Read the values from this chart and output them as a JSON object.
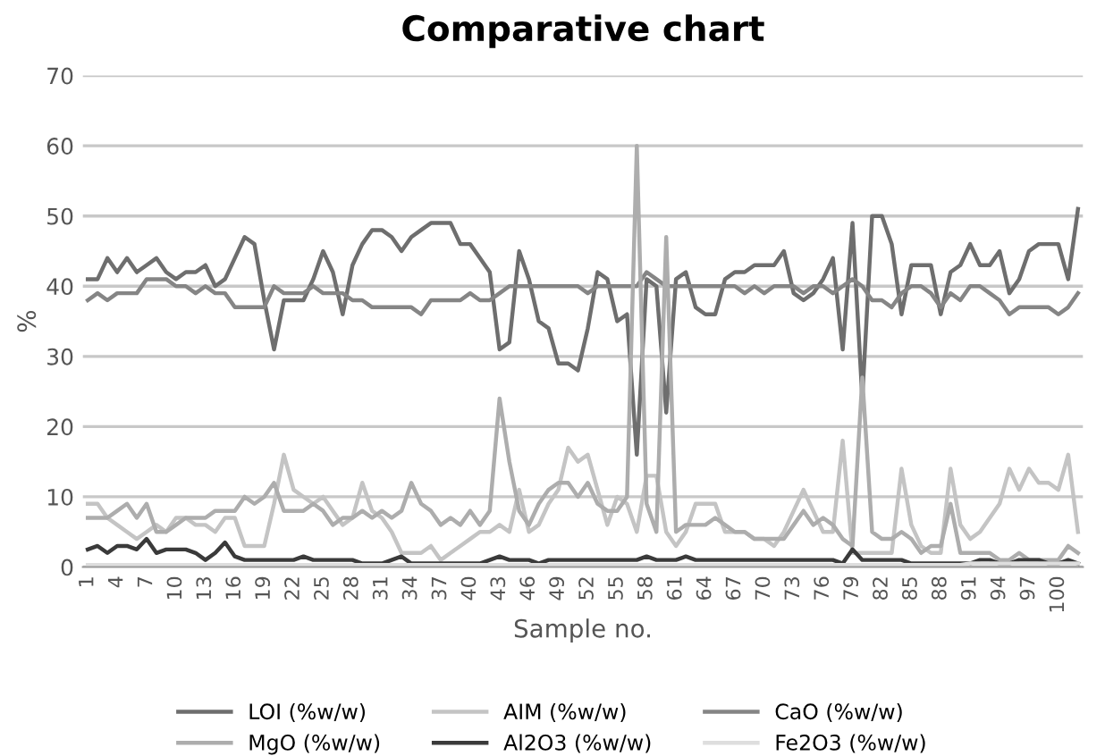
{
  "chart_data": {
    "type": "line",
    "title": "Comparative chart",
    "xlabel": "Sample no.",
    "ylabel": "%",
    "categories": [
      "1",
      null,
      null,
      "4",
      null,
      null,
      "7",
      null,
      null,
      "10",
      null,
      null,
      "13",
      null,
      null,
      "16",
      null,
      null,
      "19",
      null,
      null,
      "22",
      null,
      null,
      "25",
      null,
      null,
      "28",
      null,
      null,
      "31",
      null,
      null,
      "34",
      null,
      null,
      "37",
      null,
      null,
      "40",
      null,
      null,
      "43",
      null,
      null,
      "46",
      null,
      null,
      "49",
      null,
      null,
      "52",
      null,
      null,
      "55",
      null,
      null,
      "58",
      null,
      null,
      "61",
      null,
      null,
      "64",
      null,
      null,
      "67",
      null,
      null,
      "70",
      null,
      null,
      "73",
      null,
      null,
      "76",
      null,
      null,
      "79",
      null,
      null,
      "82",
      null,
      null,
      "85",
      null,
      null,
      "88",
      null,
      null,
      "91",
      null,
      null,
      "94",
      null,
      null,
      "97",
      null,
      null,
      "100",
      null,
      null
    ],
    "ylim": [
      0,
      70
    ],
    "yticks": [
      0,
      10,
      20,
      30,
      40,
      50,
      60,
      70
    ],
    "grid": "y",
    "legend": "bottom",
    "marker": "none",
    "line_style": "solid",
    "series": [
      {
        "name": "LOI (%w/w)",
        "color": "#6e6e6e",
        "values": [
          41,
          41,
          44,
          42,
          44,
          42,
          43,
          44,
          42,
          41,
          42,
          42,
          43,
          40,
          41,
          44,
          47,
          46,
          38,
          31,
          38,
          38,
          38,
          41,
          45,
          42,
          36,
          43,
          46,
          48,
          48,
          47,
          45,
          47,
          48,
          49,
          49,
          49,
          46,
          46,
          44,
          42,
          31,
          32,
          45,
          41,
          35,
          34,
          29,
          29,
          28,
          34,
          42,
          41,
          35,
          36,
          16,
          41,
          40,
          22,
          41,
          42,
          37,
          36,
          36,
          41,
          42,
          42,
          43,
          43,
          43,
          45,
          39,
          38,
          39,
          41,
          44,
          31,
          49,
          24,
          50,
          50,
          46,
          36,
          43,
          43,
          43,
          36,
          42,
          43,
          46,
          43,
          43,
          45,
          39,
          41,
          45,
          46,
          46,
          46,
          41,
          51
        ]
      },
      {
        "name": "AIM (%w/w)",
        "color": "#c4c4c4",
        "values": [
          9,
          9,
          7,
          6,
          5,
          4,
          5,
          6,
          5,
          7,
          7,
          6,
          6,
          5,
          7,
          7,
          3,
          3,
          3,
          9,
          16,
          11,
          10,
          9,
          10,
          8,
          6,
          7,
          12,
          8,
          7,
          5,
          2,
          2,
          2,
          3,
          1,
          2,
          3,
          4,
          5,
          5,
          6,
          5,
          11,
          5,
          6,
          9,
          11,
          17,
          15,
          16,
          11,
          6,
          10,
          9,
          5,
          13,
          13,
          5,
          3,
          5,
          9,
          9,
          9,
          5,
          5,
          5,
          4,
          4,
          3,
          5,
          8,
          11,
          8,
          5,
          5,
          18,
          2,
          2,
          2,
          2,
          2,
          14,
          6,
          3,
          2,
          2,
          14,
          6,
          4,
          5,
          7,
          9,
          14,
          11,
          14,
          12,
          12,
          11,
          16,
          5
        ]
      },
      {
        "name": "CaO (%w/w)",
        "color": "#858585",
        "values": [
          38,
          39,
          38,
          39,
          39,
          39,
          41,
          41,
          41,
          40,
          40,
          39,
          40,
          39,
          39,
          37,
          37,
          37,
          37,
          40,
          39,
          39,
          39,
          40,
          39,
          39,
          39,
          38,
          38,
          37,
          37,
          37,
          37,
          37,
          36,
          38,
          38,
          38,
          38,
          39,
          38,
          38,
          39,
          40,
          40,
          40,
          40,
          40,
          40,
          40,
          40,
          39,
          40,
          40,
          40,
          40,
          40,
          42,
          41,
          40,
          40,
          40,
          40,
          40,
          40,
          40,
          40,
          39,
          40,
          39,
          40,
          40,
          40,
          39,
          40,
          40,
          39,
          40,
          41,
          40,
          38,
          38,
          37,
          39,
          40,
          40,
          39,
          37,
          39,
          38,
          40,
          40,
          39,
          38,
          36,
          37,
          37,
          37,
          37,
          36,
          37,
          39
        ]
      },
      {
        "name": "MgO (%w/w)",
        "color": "#adadad",
        "values": [
          7,
          7,
          7,
          8,
          9,
          7,
          9,
          5,
          5,
          6,
          7,
          7,
          7,
          8,
          8,
          8,
          10,
          9,
          10,
          12,
          8,
          8,
          8,
          9,
          8,
          6,
          7,
          7,
          8,
          7,
          8,
          7,
          8,
          12,
          9,
          8,
          6,
          7,
          6,
          8,
          6,
          8,
          24,
          15,
          8,
          6,
          9,
          11,
          12,
          12,
          10,
          12,
          9,
          8,
          8,
          10,
          60,
          9,
          5,
          47,
          5,
          6,
          6,
          6,
          7,
          6,
          5,
          5,
          4,
          4,
          4,
          4,
          6,
          8,
          6,
          7,
          6,
          4,
          3,
          27,
          5,
          4,
          4,
          5,
          4,
          2,
          3,
          3,
          9,
          2,
          2,
          2,
          2,
          1,
          1,
          2,
          1,
          1,
          1,
          1,
          3,
          2
        ]
      },
      {
        "name": "Al2O3 (%w/w)",
        "color": "#3a3a3a",
        "values": [
          2.5,
          3,
          2,
          3,
          3,
          2.5,
          4,
          2,
          2.5,
          2.5,
          2.5,
          2,
          1,
          2,
          3.5,
          1.5,
          1,
          1,
          1,
          1,
          1,
          1,
          1.5,
          1,
          1,
          1,
          1,
          1,
          0.5,
          0.5,
          0.5,
          1,
          1.5,
          0.5,
          0.5,
          0.5,
          0.5,
          0.5,
          0.5,
          0.5,
          0.5,
          1,
          1.5,
          1,
          1,
          1,
          0.5,
          1,
          1,
          1,
          1,
          1,
          1,
          1,
          1,
          1,
          1,
          1.5,
          1,
          1,
          1,
          1.5,
          1,
          1,
          1,
          1,
          1,
          1,
          1,
          1,
          1,
          1,
          1,
          1,
          1,
          1,
          1,
          0.5,
          2.5,
          1,
          1,
          1,
          1,
          1,
          0.5,
          0.5,
          0.5,
          0.5,
          0.5,
          0.5,
          0.5,
          1,
          1,
          0.5,
          0.5,
          1,
          1,
          1,
          0.5,
          0.5,
          1,
          0.5
        ]
      },
      {
        "name": "Fe2O3 (%w/w)",
        "color": "#dedede",
        "values": [
          0.3,
          0.3,
          0.3,
          0.3,
          0.3,
          0.3,
          0.3,
          0.3,
          0.3,
          0.3,
          0.3,
          0.3,
          0.3,
          0.3,
          0.3,
          0.3,
          0.3,
          0.3,
          0.3,
          0.3,
          0.3,
          0.3,
          0.3,
          0.3,
          0.3,
          0.3,
          0.3,
          0.3,
          0.3,
          0.3,
          0.3,
          0.3,
          0.3,
          0.3,
          0.3,
          0.3,
          0.3,
          0.3,
          0.3,
          0.3,
          0.3,
          0.3,
          0.3,
          0.3,
          0.3,
          0.3,
          0.3,
          0.3,
          0.3,
          0.3,
          0.3,
          0.3,
          0.3,
          0.3,
          0.3,
          0.3,
          0.3,
          0.3,
          0.3,
          0.3,
          0.3,
          0.3,
          0.3,
          0.3,
          0.3,
          0.3,
          0.3,
          0.3,
          0.3,
          0.3,
          0.3,
          0.3,
          0.3,
          0.3,
          0.3,
          0.3,
          0.3,
          0.3,
          0.3,
          0.3,
          0.3,
          0.3,
          0.3,
          0.3,
          0.3,
          0.3,
          0.3,
          0.3,
          0.3,
          0.3,
          0.5,
          0.5,
          0.5,
          0.5,
          0.5,
          0.5,
          0.5,
          0.5,
          0.5,
          0.5,
          0.5,
          0.5
        ]
      }
    ]
  }
}
